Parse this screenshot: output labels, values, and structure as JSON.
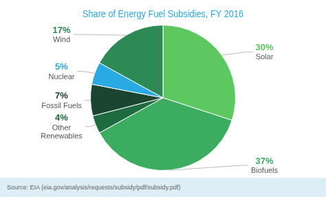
{
  "chart_data": {
    "type": "pie",
    "title": "Share of Energy Fuel Subsidies, FY 2016",
    "categories": [
      "Solar",
      "Biofuels",
      "Other\nRenewables",
      "Fossil Fuels",
      "Nuclear",
      "Wind"
    ],
    "values": [
      30,
      37,
      4,
      7,
      5,
      17
    ],
    "value_labels": [
      "30%",
      "37%",
      "4%",
      "7%",
      "5%",
      "17%"
    ],
    "colors": [
      "#5ec860",
      "#3bac60",
      "#1e6b40",
      "#1a4530",
      "#29aae2",
      "#2d8a55"
    ],
    "data_labels": true,
    "legend": false,
    "annotations": [
      "Source: EIA (eia.gov/analysis/requests/subsidy/pdf/subsidy.pdf)"
    ]
  }
}
